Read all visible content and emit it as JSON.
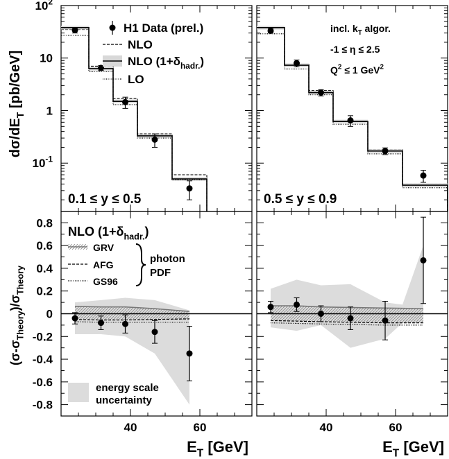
{
  "chart_data": [
    {
      "panel": "top-left",
      "type": "line",
      "scale_y": "log",
      "xlim": [
        20,
        75
      ],
      "ylim": [
        0.012,
        100
      ],
      "y_tick_labels": [
        {
          "value": 100,
          "base": "10",
          "exp": "2"
        },
        {
          "value": 10,
          "text": "10"
        },
        {
          "value": 1,
          "text": "1"
        },
        {
          "value": 0.1,
          "base": "10",
          "exp": "-1"
        }
      ],
      "ylabel": {
        "main": "dσ/dE",
        "sub": "T",
        "unit": " [pb/GeV]"
      },
      "region_label": "0.1 ≤ y ≤ 0.5",
      "legend": {
        "data": "H1 Data (prel.)",
        "nlo": "NLO",
        "nlo_hadr": {
          "main": "NLO (1+δ",
          "sub": "hadr.",
          "end": ")"
        },
        "lo": "LO"
      },
      "bin_edges": [
        20,
        28,
        35,
        42,
        52,
        62
      ],
      "series": [
        {
          "name": "H1 Data (prel.)",
          "x": [
            24,
            31.5,
            38.5,
            47,
            57
          ],
          "y": [
            34,
            6.5,
            1.45,
            0.28,
            0.033
          ],
          "yerr": [
            [
              4,
              0.7,
              0.35,
              0.08,
              0.013
            ],
            [
              4,
              0.7,
              0.35,
              0.08,
              0.013
            ]
          ]
        },
        {
          "name": "NLO",
          "values": [
            35,
            7,
            1.7,
            0.36,
            0.06
          ]
        },
        {
          "name": "NLO (1+δhadr.)",
          "values": [
            38,
            6.3,
            1.5,
            0.33,
            0.05
          ]
        },
        {
          "name": "LO",
          "values": [
            27,
            5.5,
            1.3,
            0.3,
            0.048
          ]
        }
      ]
    },
    {
      "panel": "top-right",
      "type": "line",
      "scale_y": "log",
      "xlim": [
        20,
        75
      ],
      "ylim": [
        0.012,
        100
      ],
      "region_label": "0.5 ≤ y ≤ 0.9",
      "annotations": [
        {
          "main": "incl. k",
          "sub": "T",
          "end": " algor."
        },
        {
          "text": "-1 ≤ η ≤ 2.5"
        },
        {
          "main": "Q",
          "sup": "2",
          "end": " ≤ 1 GeV",
          "sup2": "2"
        }
      ],
      "bin_edges": [
        20,
        28,
        35,
        42,
        52,
        62,
        75
      ],
      "series": [
        {
          "name": "H1 Data (prel.)",
          "x": [
            24,
            31.5,
            38.5,
            47,
            57,
            68
          ],
          "y": [
            33,
            8,
            2.2,
            0.65,
            0.17,
            0.058
          ],
          "yerr": [
            [
              3,
              1.2,
              0.3,
              0.15,
              0.025,
              0.015
            ],
            [
              3,
              1.2,
              0.3,
              0.15,
              0.025,
              0.015
            ]
          ]
        },
        {
          "name": "NLO",
          "values": [
            36,
            7.5,
            2.4,
            0.64,
            0.18,
            0.04
          ]
        },
        {
          "name": "NLO (1+δhadr.)",
          "values": [
            38,
            7.3,
            2.2,
            0.62,
            0.17,
            0.038
          ]
        },
        {
          "name": "LO",
          "values": [
            29,
            6.2,
            2.0,
            0.55,
            0.15,
            0.034
          ]
        }
      ]
    },
    {
      "panel": "bottom-left",
      "type": "scatter",
      "xlim": [
        20,
        75
      ],
      "ylim": [
        -0.9,
        0.9
      ],
      "x_ticks": [
        40,
        60
      ],
      "y_ticks": [
        -0.8,
        -0.6,
        -0.4,
        -0.2,
        0,
        0.2,
        0.4,
        0.6,
        0.8
      ],
      "xlabel": {
        "main": "E",
        "sub": "T",
        "unit": "  [GeV]"
      },
      "ylabel": {
        "p1": "(σ-σ",
        "s1": "Theory",
        "p2": ")/σ",
        "s2": "Theory"
      },
      "legend": {
        "title": {
          "main": "NLO (1+δ",
          "sub": "hadr.",
          "end": ")"
        },
        "grv": "GRV",
        "afg": "AFG",
        "gs96": "GS96",
        "brace_label": [
          "photon",
          "PDF"
        ],
        "band": [
          "energy scale",
          "uncertainty"
        ]
      },
      "band": {
        "x": [
          24,
          31.5,
          38.5,
          47,
          57
        ],
        "upper": [
          0.1,
          0.12,
          0.14,
          0.12,
          0.03
        ],
        "lower": [
          -0.18,
          -0.18,
          -0.2,
          -0.35,
          -0.8
        ]
      },
      "series": [
        {
          "name": "H1 Data (prel.)",
          "x": [
            24,
            31.5,
            38.5,
            47,
            57
          ],
          "y": [
            -0.04,
            -0.08,
            -0.09,
            -0.16,
            -0.35
          ],
          "yerr": [
            [
              0.05,
              0.06,
              0.08,
              0.1,
              0.24
            ],
            [
              0.05,
              0.06,
              0.08,
              0.1,
              0.24
            ]
          ]
        },
        {
          "name": "GRV",
          "x": [
            24,
            31.5,
            38.5,
            47,
            57
          ],
          "y": [
            0.065,
            0.06,
            0.06,
            0.045,
            0.02
          ]
        },
        {
          "name": "AFG",
          "x": [
            24,
            31.5,
            38.5,
            47,
            57
          ],
          "y": [
            -0.05,
            -0.055,
            -0.055,
            -0.05,
            -0.045
          ]
        },
        {
          "name": "GS96",
          "x": [
            24,
            31.5,
            38.5,
            47,
            57
          ],
          "y": [
            -0.07,
            -0.075,
            -0.075,
            -0.075,
            -0.075
          ]
        }
      ]
    },
    {
      "panel": "bottom-right",
      "type": "scatter",
      "xlim": [
        20,
        75
      ],
      "ylim": [
        -0.9,
        0.9
      ],
      "x_ticks": [
        40,
        60
      ],
      "xlabel": {
        "main": "E",
        "sub": "T",
        "unit": "  [GeV]"
      },
      "band": {
        "x": [
          24,
          31.5,
          38.5,
          47,
          57,
          62,
          68
        ],
        "upper": [
          0.22,
          0.3,
          0.25,
          0.26,
          0.1,
          0.08,
          0.6
        ],
        "lower": [
          -0.12,
          -0.15,
          -0.1,
          -0.3,
          -0.22,
          -0.08,
          -0.08
        ]
      },
      "series": [
        {
          "name": "H1 Data (prel.)",
          "x": [
            24,
            31.5,
            38.5,
            47,
            57,
            68
          ],
          "y": [
            0.06,
            0.08,
            0.0,
            -0.04,
            -0.06,
            0.47
          ],
          "yerr": [
            [
              0.05,
              0.06,
              0.07,
              0.1,
              0.17,
              0.38
            ],
            [
              0.05,
              0.06,
              0.07,
              0.1,
              0.17,
              0.38
            ]
          ]
        },
        {
          "name": "GRV",
          "x": [
            24,
            31.5,
            38.5,
            47,
            57,
            68
          ],
          "y": [
            0.07,
            0.07,
            0.06,
            0.055,
            0.05,
            0.045
          ]
        },
        {
          "name": "AFG",
          "x": [
            24,
            31.5,
            38.5,
            47,
            57,
            68
          ],
          "y": [
            -0.06,
            -0.065,
            -0.07,
            -0.075,
            -0.08,
            -0.08
          ]
        },
        {
          "name": "GS96",
          "x": [
            24,
            31.5,
            38.5,
            47,
            57,
            68
          ],
          "y": [
            -0.08,
            -0.085,
            -0.09,
            -0.095,
            -0.1,
            -0.1
          ]
        }
      ]
    }
  ]
}
